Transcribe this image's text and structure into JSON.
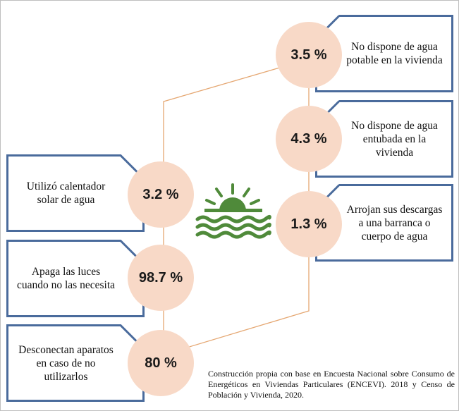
{
  "colors": {
    "card_border": "#4a6b9c",
    "circle_fill": "#f8d9c7",
    "connector": "#e5a772",
    "icon": "#4f8a3a"
  },
  "left_items": [
    {
      "label": "Utilizó calentador solar de agua",
      "value": "3.2 %"
    },
    {
      "label": "Apaga las luces cuando no las necesita",
      "value": "98.7 %"
    },
    {
      "label": "Desconectan aparatos en caso de no utilizarlos",
      "value": "80 %"
    }
  ],
  "right_items": [
    {
      "label": "No dispone de agua potable en la vivienda",
      "value": "3.5 %"
    },
    {
      "label": "No dispone de agua entubada en la vivienda",
      "value": "4.3 %"
    },
    {
      "label": "Arrojan sus descargas a una barranca o cuerpo de agua",
      "value": "1.3 %"
    }
  ],
  "icon": "sun-over-water-icon",
  "footnote": "Construcción propia con base en Encuesta Nacional sobre Consumo de Energéticos en Viviendas Particulares (ENCEVI). 2018 y Censo de Población y Vivienda, 2020."
}
